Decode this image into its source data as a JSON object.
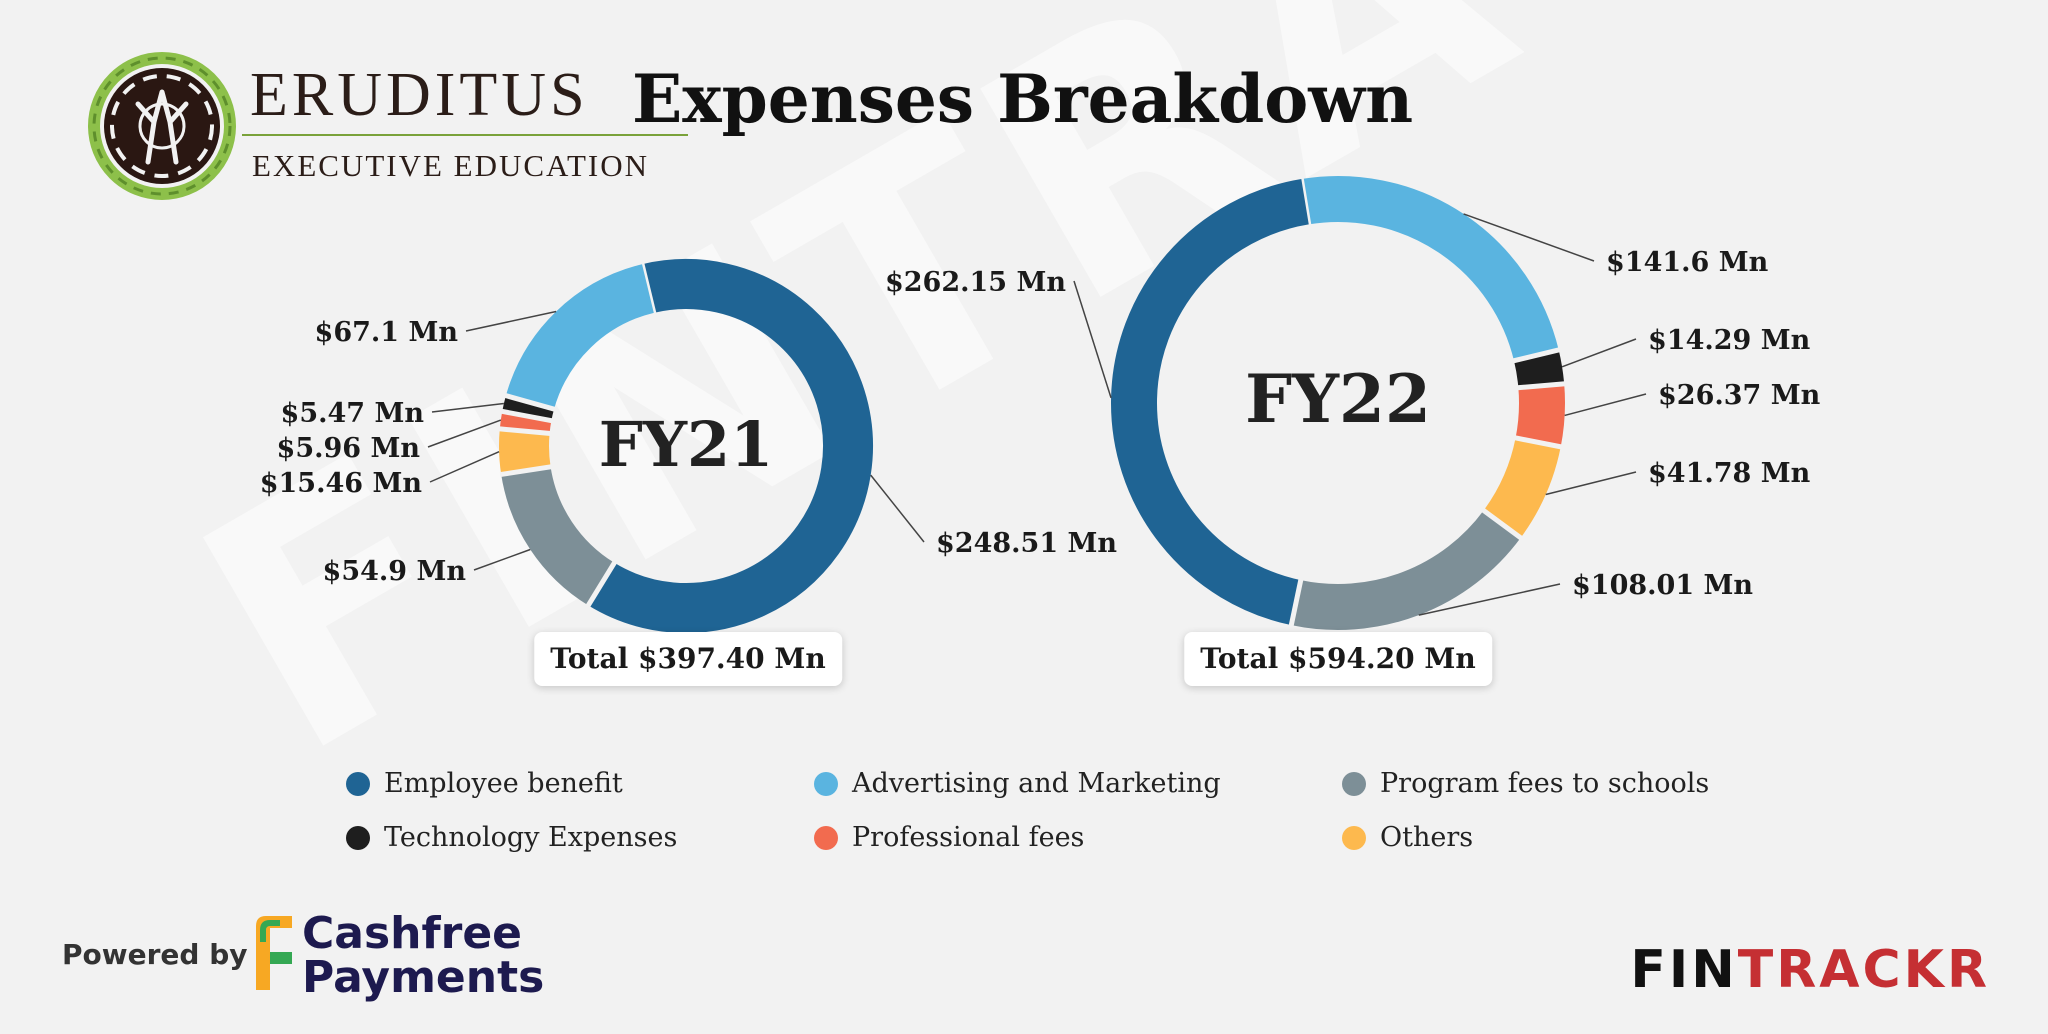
{
  "header": {
    "brand_name": "ERUDITUS",
    "brand_tagline": "EXECUTIVE EDUCATION",
    "title": "Expenses Breakdown"
  },
  "watermark": "FINTRACKR",
  "colors": {
    "employee": "#1f6494",
    "advertising": "#5ab4e0",
    "program": "#7d8f97",
    "technology": "#1e1e1e",
    "professional": "#f26b4f",
    "others": "#fdb94e"
  },
  "chart_data": [
    {
      "type": "pie",
      "center_label": "FY21",
      "total_label": "Total $397.40 Mn",
      "slices": [
        {
          "category": "Employee benefit",
          "color_key": "employee",
          "value": 248.51,
          "label": "$248.51 Mn"
        },
        {
          "category": "Program fees to schools",
          "color_key": "program",
          "value": 54.9,
          "label": "$54.9 Mn"
        },
        {
          "category": "Others",
          "color_key": "others",
          "value": 15.46,
          "label": "$15.46 Mn"
        },
        {
          "category": "Professional fees",
          "color_key": "professional",
          "value": 5.96,
          "label": "$5.96 Mn"
        },
        {
          "category": "Technology Expenses",
          "color_key": "technology",
          "value": 5.47,
          "label": "$5.47 Mn"
        },
        {
          "category": "Advertising and Marketing",
          "color_key": "advertising",
          "value": 67.1,
          "label": "$67.1 Mn"
        }
      ]
    },
    {
      "type": "pie",
      "center_label": "FY22",
      "total_label": "Total $594.20 Mn",
      "slices": [
        {
          "category": "Advertising and Marketing",
          "color_key": "advertising",
          "value": 141.6,
          "label": "$141.6 Mn"
        },
        {
          "category": "Technology Expenses",
          "color_key": "technology",
          "value": 14.29,
          "label": "$14.29 Mn"
        },
        {
          "category": "Professional fees",
          "color_key": "professional",
          "value": 26.37,
          "label": "$26.37 Mn"
        },
        {
          "category": "Others",
          "color_key": "others",
          "value": 41.78,
          "label": "$41.78 Mn"
        },
        {
          "category": "Program fees to schools",
          "color_key": "program",
          "value": 108.01,
          "label": "$108.01 Mn"
        },
        {
          "category": "Employee benefit",
          "color_key": "employee",
          "value": 262.15,
          "label": "$262.15 Mn"
        }
      ]
    }
  ],
  "legend": [
    {
      "label": "Employee benefit",
      "color_key": "employee"
    },
    {
      "label": "Advertising and Marketing",
      "color_key": "advertising"
    },
    {
      "label": "Program fees to schools",
      "color_key": "program"
    },
    {
      "label": "Technology Expenses",
      "color_key": "technology"
    },
    {
      "label": "Professional fees",
      "color_key": "professional"
    },
    {
      "label": "Others",
      "color_key": "others"
    }
  ],
  "footer": {
    "powered_by": "Powered by",
    "sponsor_line1": "Cashfree",
    "sponsor_line2": "Payments",
    "brand_part1": "FIN",
    "brand_part2": "TRACKR"
  }
}
